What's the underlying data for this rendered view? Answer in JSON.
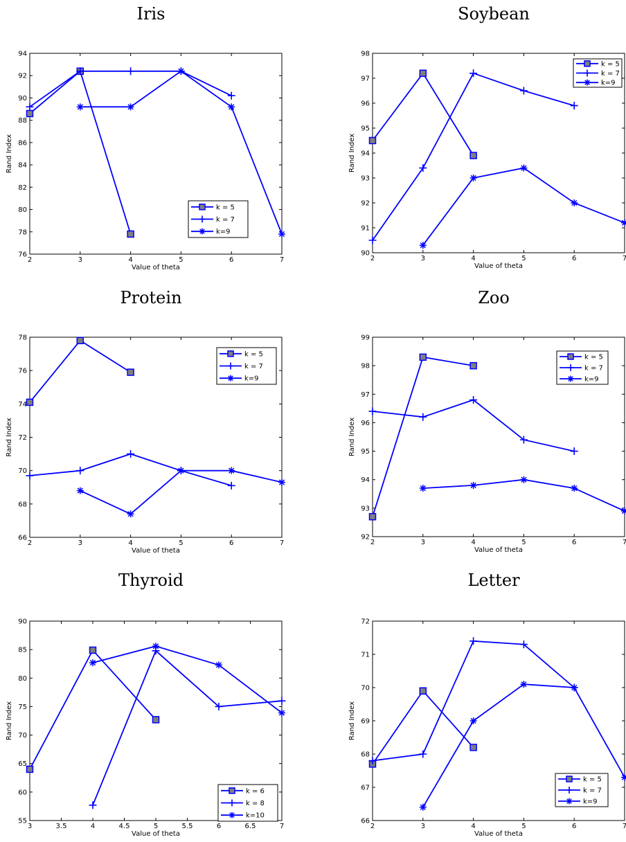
{
  "chart_data": [
    {
      "type": "line",
      "title": "Iris",
      "xlabel": "Value of theta",
      "ylabel": "Rand Index",
      "xlim": [
        2,
        7
      ],
      "ylim": [
        76,
        94
      ],
      "xticks": [
        2,
        3,
        4,
        5,
        6,
        7
      ],
      "xtick_labels": [
        "2",
        "3",
        "4",
        "5",
        "6",
        "7"
      ],
      "yticks": [
        76,
        78,
        80,
        82,
        84,
        86,
        88,
        90,
        92,
        94
      ],
      "ytick_labels": [
        "76",
        "78",
        "80",
        "82",
        "84",
        "86",
        "88",
        "90",
        "92",
        "94"
      ],
      "legend_position": "bottom-right",
      "series": [
        {
          "name": "k = 5",
          "marker": "square",
          "x": [
            2,
            3,
            4
          ],
          "y": [
            88.6,
            92.4,
            77.8
          ]
        },
        {
          "name": "k = 7",
          "marker": "plus",
          "x": [
            2,
            3,
            4,
            5,
            6
          ],
          "y": [
            89.2,
            92.4,
            92.4,
            92.4,
            90.2
          ]
        },
        {
          "name": "k=9",
          "marker": "asterisk",
          "x": [
            3,
            4,
            5,
            6,
            7
          ],
          "y": [
            89.2,
            89.2,
            92.4,
            89.2,
            77.8
          ]
        }
      ]
    },
    {
      "type": "line",
      "title": "Soybean",
      "xlabel": "Value of theta",
      "ylabel": "Rand Index",
      "xlim": [
        2,
        7
      ],
      "ylim": [
        90,
        98
      ],
      "xticks": [
        2,
        3,
        4,
        5,
        6,
        7
      ],
      "xtick_labels": [
        "2",
        "3",
        "4",
        "5",
        "6",
        "7"
      ],
      "yticks": [
        90,
        91,
        92,
        93,
        94,
        95,
        96,
        97,
        98
      ],
      "ytick_labels": [
        "90",
        "91",
        "92",
        "93",
        "94",
        "95",
        "96",
        "97",
        "98"
      ],
      "legend_position": "top-right",
      "series": [
        {
          "name": "k = 5",
          "marker": "square",
          "x": [
            2,
            3,
            4
          ],
          "y": [
            94.5,
            97.2,
            93.9
          ]
        },
        {
          "name": "k = 7",
          "marker": "plus",
          "x": [
            2,
            3,
            4,
            5,
            6
          ],
          "y": [
            90.5,
            93.4,
            97.2,
            96.5,
            95.9
          ]
        },
        {
          "name": "k=9",
          "marker": "asterisk",
          "x": [
            3,
            4,
            5,
            6,
            7
          ],
          "y": [
            90.3,
            93.0,
            93.4,
            92.0,
            91.2
          ]
        }
      ]
    },
    {
      "type": "line",
      "title": "Protein",
      "xlabel": "Value of theta",
      "ylabel": "Rand Index",
      "xlim": [
        2,
        7
      ],
      "ylim": [
        66,
        78
      ],
      "xticks": [
        2,
        3,
        4,
        5,
        6,
        7
      ],
      "xtick_labels": [
        "2",
        "3",
        "4",
        "5",
        "6",
        "7"
      ],
      "yticks": [
        66,
        68,
        70,
        72,
        74,
        76,
        78
      ],
      "ytick_labels": [
        "66",
        "68",
        "70",
        "72",
        "74",
        "76",
        "78"
      ],
      "legend_position": "top-right",
      "series": [
        {
          "name": "k = 5",
          "marker": "square",
          "x": [
            2,
            3,
            4
          ],
          "y": [
            74.1,
            77.8,
            75.9
          ]
        },
        {
          "name": "k = 7",
          "marker": "plus",
          "x": [
            2,
            3,
            4,
            5,
            6
          ],
          "y": [
            69.7,
            70.0,
            71.0,
            70.0,
            69.1
          ]
        },
        {
          "name": "k=9",
          "marker": "asterisk",
          "x": [
            3,
            4,
            5,
            6,
            7
          ],
          "y": [
            68.8,
            67.4,
            70.0,
            70.0,
            69.3
          ]
        }
      ]
    },
    {
      "type": "line",
      "title": "Zoo",
      "xlabel": "Value of theta",
      "ylabel": "Rand Index",
      "xlim": [
        2,
        7
      ],
      "ylim": [
        92,
        99
      ],
      "xticks": [
        2,
        3,
        4,
        5,
        6,
        7
      ],
      "xtick_labels": [
        "2",
        "3",
        "4",
        "5",
        "6",
        "7"
      ],
      "yticks": [
        92,
        93,
        94,
        95,
        96,
        97,
        98,
        99
      ],
      "ytick_labels": [
        "92",
        "93",
        "94",
        "95",
        "96",
        "97",
        "98",
        "99"
      ],
      "legend_position": "top-right",
      "series": [
        {
          "name": "k = 5",
          "marker": "square",
          "x": [
            2,
            3,
            4
          ],
          "y": [
            92.7,
            98.3,
            98.0
          ]
        },
        {
          "name": "k = 7",
          "marker": "plus",
          "x": [
            2,
            3,
            4,
            5,
            6
          ],
          "y": [
            96.4,
            96.2,
            96.8,
            95.4,
            95.0
          ]
        },
        {
          "name": "k=9",
          "marker": "asterisk",
          "x": [
            3,
            4,
            5,
            6,
            7
          ],
          "y": [
            93.7,
            93.8,
            94.0,
            93.7,
            92.9
          ]
        }
      ]
    },
    {
      "type": "line",
      "title": "Thyroid",
      "xlabel": "Value of theta",
      "ylabel": "Rand Index",
      "xlim": [
        3,
        7
      ],
      "ylim": [
        55,
        90
      ],
      "xticks": [
        3,
        3.5,
        4,
        4.5,
        5,
        5.5,
        6,
        6.5,
        7
      ],
      "xtick_labels": [
        "3",
        "3.5",
        "4",
        "4.5",
        "5",
        "5.5",
        "6",
        "6.5",
        "7"
      ],
      "yticks": [
        55,
        60,
        65,
        70,
        75,
        80,
        85,
        90
      ],
      "ytick_labels": [
        "55",
        "60",
        "65",
        "70",
        "75",
        "80",
        "85",
        "90"
      ],
      "legend_position": "bottom-right",
      "series": [
        {
          "name": "k = 6",
          "marker": "square",
          "x": [
            3,
            4,
            5
          ],
          "y": [
            64.0,
            84.9,
            72.7
          ]
        },
        {
          "name": "k = 8",
          "marker": "plus",
          "x": [
            4,
            5,
            6,
            7
          ],
          "y": [
            57.7,
            84.8,
            75.0,
            76.0
          ]
        },
        {
          "name": "k=10",
          "marker": "asterisk",
          "x": [
            4,
            5,
            6,
            7
          ],
          "y": [
            82.7,
            85.6,
            82.3,
            73.9
          ]
        }
      ]
    },
    {
      "type": "line",
      "title": "Letter",
      "xlabel": "Value of theta",
      "ylabel": "Rand Index",
      "xlim": [
        2,
        7
      ],
      "ylim": [
        66,
        72
      ],
      "xticks": [
        2,
        3,
        4,
        5,
        6,
        7
      ],
      "xtick_labels": [
        "2",
        "3",
        "4",
        "5",
        "6",
        "7"
      ],
      "yticks": [
        66,
        67,
        68,
        69,
        70,
        71,
        72
      ],
      "ytick_labels": [
        "66",
        "67",
        "68",
        "69",
        "70",
        "71",
        "72"
      ],
      "legend_position": "bottom-right",
      "series": [
        {
          "name": "k = 5",
          "marker": "square",
          "x": [
            2,
            3,
            4
          ],
          "y": [
            67.7,
            69.9,
            68.2
          ]
        },
        {
          "name": "k = 7",
          "marker": "plus",
          "x": [
            2,
            3,
            4,
            5,
            6
          ],
          "y": [
            67.8,
            68.0,
            71.4,
            71.3,
            70.0
          ]
        },
        {
          "name": "k=9",
          "marker": "asterisk",
          "x": [
            3,
            4,
            5,
            6,
            7
          ],
          "y": [
            66.4,
            69.0,
            70.1,
            70.0,
            67.3
          ]
        }
      ]
    }
  ],
  "colors": {
    "line": "#0000ff",
    "square_fill": "#7f7f7f"
  }
}
